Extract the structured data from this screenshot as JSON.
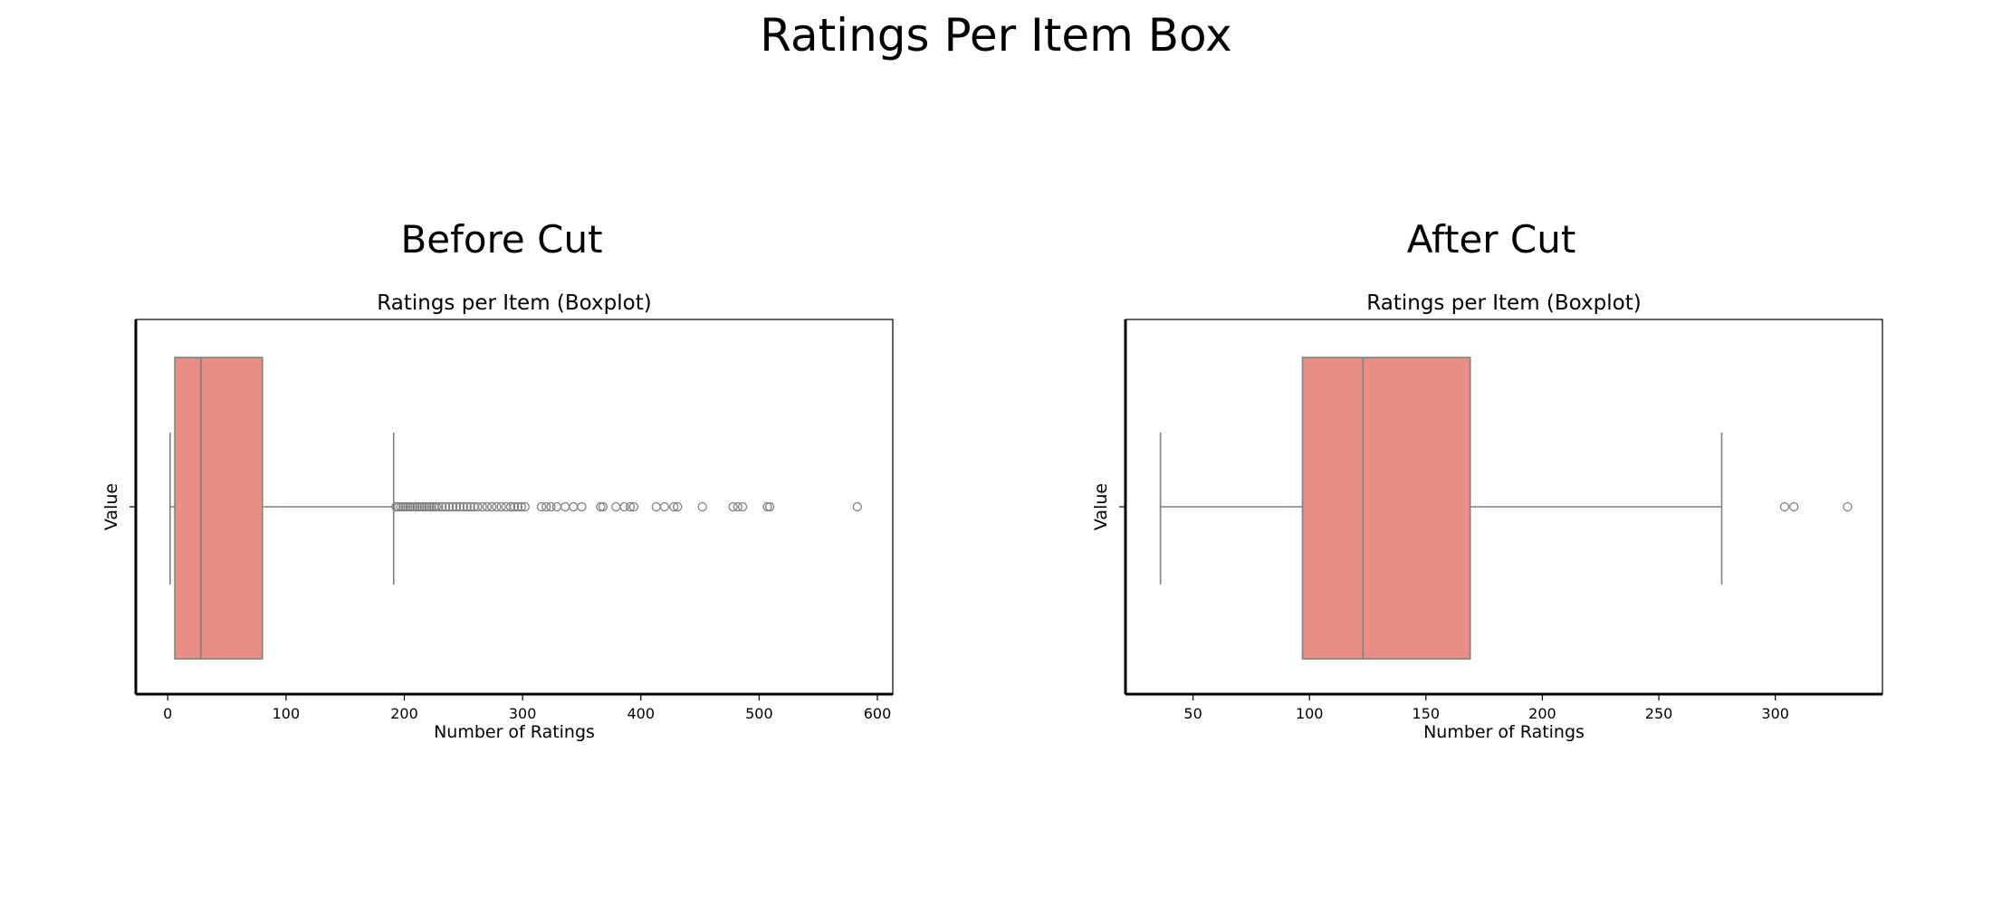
{
  "figure": {
    "title": "Ratings Per Item Box"
  },
  "style": {
    "box_fill": "#e88e84",
    "line_color": "#808080",
    "outlier_color": "#808080"
  },
  "panels": [
    {
      "panel_title": "Before Cut",
      "chart_data": {
        "type": "boxplot",
        "orientation": "horizontal",
        "title": "Ratings per Item (Boxplot)",
        "xlabel": "Number of Ratings",
        "ylabel": "Value",
        "xlim": [
          -27,
          613
        ],
        "xticks": [
          0,
          100,
          200,
          300,
          400,
          500,
          600
        ],
        "grid": false,
        "stats": {
          "whisker_low": 2,
          "q1": 6,
          "median": 28,
          "q3": 80,
          "whisker_high": 191
        },
        "outliers": [
          193,
          195,
          197,
          199,
          201,
          203,
          205,
          207,
          209,
          211,
          213,
          215,
          217,
          219,
          221,
          223,
          225,
          227,
          229,
          232,
          235,
          238,
          241,
          244,
          247,
          250,
          253,
          256,
          259,
          262,
          266,
          270,
          274,
          278,
          282,
          286,
          290,
          293,
          296,
          299,
          302,
          316,
          320,
          324,
          329,
          336,
          343,
          350,
          366,
          368,
          379,
          386,
          391,
          394,
          413,
          420,
          428,
          431,
          452,
          478,
          482,
          486,
          507,
          509,
          583
        ]
      }
    },
    {
      "panel_title": "After Cut",
      "chart_data": {
        "type": "boxplot",
        "orientation": "horizontal",
        "title": "Ratings per Item (Boxplot)",
        "xlabel": "Number of Ratings",
        "ylabel": "Value",
        "xlim": [
          21,
          346
        ],
        "xticks": [
          50,
          100,
          150,
          200,
          250,
          300
        ],
        "grid": false,
        "stats": {
          "whisker_low": 36,
          "q1": 97,
          "median": 123,
          "q3": 169,
          "whisker_high": 277
        },
        "outliers": [
          304,
          308,
          331
        ]
      }
    }
  ]
}
